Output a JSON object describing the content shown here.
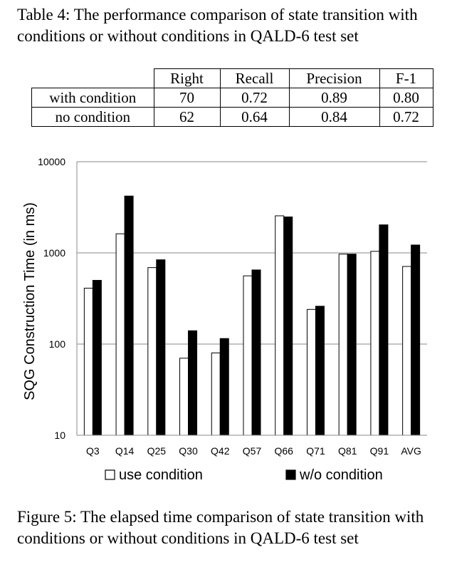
{
  "table": {
    "caption": "Table 4: The performance comparison of state transition with conditions or without conditions in QALD-6 test set",
    "headers": [
      "",
      "Right",
      "Recall",
      "Precision",
      "F-1"
    ],
    "rows": [
      {
        "label": "with condition",
        "right": "70",
        "recall": "0.72",
        "precision": "0.89",
        "f1": "0.80"
      },
      {
        "label": "no condition",
        "right": "62",
        "recall": "0.64",
        "precision": "0.84",
        "f1": "0.72"
      }
    ]
  },
  "figure": {
    "caption": "Figure 5: The elapsed time comparison of state transition with conditions or without conditions in QALD-6 test set"
  },
  "chart_data": {
    "type": "bar",
    "title": "",
    "xlabel": "",
    "ylabel": "SQG Construction Time (in ms)",
    "yscale": "log",
    "ylim": [
      10,
      10000
    ],
    "yticks": [
      "10",
      "100",
      "1000",
      "10000"
    ],
    "grid": "horizontal",
    "legend_position": "bottom",
    "categories": [
      "Q3",
      "Q14",
      "Q25",
      "Q30",
      "Q42",
      "Q57",
      "Q66",
      "Q71",
      "Q81",
      "Q91",
      "AVG"
    ],
    "series": [
      {
        "name": "use condition",
        "color": "#ffffff",
        "values": [
          410,
          1620,
          690,
          70,
          80,
          560,
          2550,
          240,
          970,
          1040,
          710
        ]
      },
      {
        "name": "w/o condition",
        "color": "#000000",
        "values": [
          500,
          4200,
          840,
          140,
          115,
          650,
          2480,
          260,
          970,
          2030,
          1220
        ]
      }
    ]
  }
}
